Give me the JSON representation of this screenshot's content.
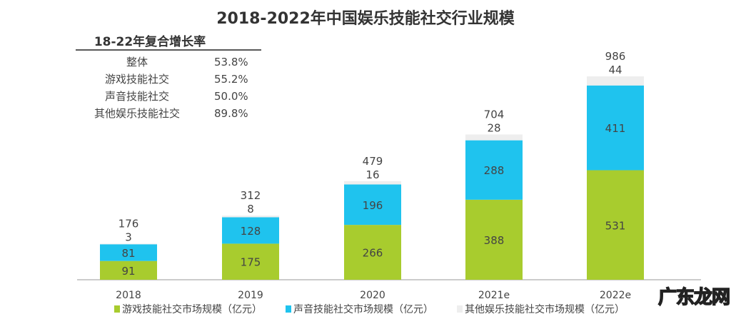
{
  "chart_data": {
    "type": "bar",
    "stacked": true,
    "title": "2018-2022年中国娱乐技能社交行业规模",
    "categories": [
      "2018",
      "2019",
      "2020",
      "2021e",
      "2022e"
    ],
    "series": [
      {
        "name": "游戏技能社交市场规模（亿元）",
        "color": "#a8cc2e",
        "values": [
          91,
          175,
          266,
          388,
          531
        ]
      },
      {
        "name": "声音技能社交市场规模（亿元）",
        "color": "#1fc3ee",
        "values": [
          81,
          128,
          196,
          288,
          411
        ]
      },
      {
        "name": "其他娱乐技能社交市场规模（亿元）",
        "color": "#eeeeee",
        "values": [
          3,
          8,
          16,
          28,
          44
        ]
      }
    ],
    "totals": [
      176,
      312,
      479,
      704,
      986
    ],
    "ylim": [
      0,
      1000
    ],
    "grid": false,
    "legend": "bottom",
    "cagr_table": {
      "title": "18-22年复合增长率",
      "rows": [
        {
          "label": "整体",
          "value": "53.8%"
        },
        {
          "label": "游戏技能社交",
          "value": "55.2%"
        },
        {
          "label": "声音技能社交",
          "value": "50.0%"
        },
        {
          "label": "其他娱乐技能社交",
          "value": "89.8%"
        }
      ]
    }
  },
  "watermark": "广东龙网"
}
